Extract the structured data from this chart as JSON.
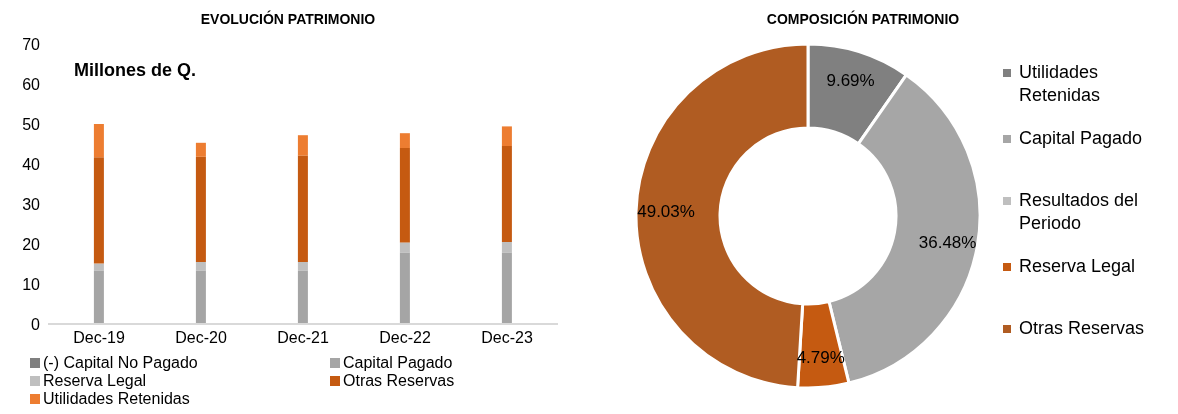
{
  "chart_data": [
    {
      "type": "bar",
      "title": "EVOLUCIÓN PATRIMONIO",
      "annotations": [
        "Millones de Q."
      ],
      "categories": [
        "Dec-19",
        "Dec-20",
        "Dec-21",
        "Dec-22",
        "Dec-23"
      ],
      "stacked": true,
      "series": [
        {
          "name": "(-) Capital No Pagado",
          "color": "#7f7f7f",
          "values": [
            0,
            0,
            0,
            0,
            0
          ]
        },
        {
          "name": "Capital Pagado",
          "color": "#a5a5a5",
          "values": [
            13.4,
            13.4,
            13.4,
            17.9,
            17.9
          ]
        },
        {
          "name": "Reserva Legal",
          "color": "#bfbfbf",
          "values": [
            1.7,
            2.1,
            2.1,
            2.5,
            2.6
          ]
        },
        {
          "name": "Otras Reservas",
          "color": "#c55a11",
          "values": [
            26.6,
            26.3,
            26.6,
            23.6,
            24.0
          ]
        },
        {
          "name": "Utilidades Retenidas",
          "color": "#ed7d31",
          "values": [
            8.3,
            3.5,
            5.1,
            3.7,
            4.9
          ]
        }
      ],
      "ylim": [
        0,
        70
      ],
      "yticks": [
        0,
        10,
        20,
        30,
        40,
        50,
        60,
        70
      ],
      "grid": false,
      "legend": "bottom"
    },
    {
      "type": "donut",
      "title": "COMPOSICIÓN PATRIMONIO",
      "categories": [
        "Utilidades Retenidas",
        "Capital Pagado",
        "Resultados del Periodo",
        "Reserva Legal",
        "Otras Reservas"
      ],
      "values": [
        9.69,
        36.48,
        0,
        4.79,
        49.03
      ],
      "colors": [
        "#808080",
        "#a6a6a6",
        "#bfbfbf",
        "#c55a11",
        "#b05c22"
      ],
      "value_labels": [
        "9.69%",
        "36.48%",
        null,
        "4.79%",
        "49.03%"
      ],
      "legend": "right"
    }
  ]
}
